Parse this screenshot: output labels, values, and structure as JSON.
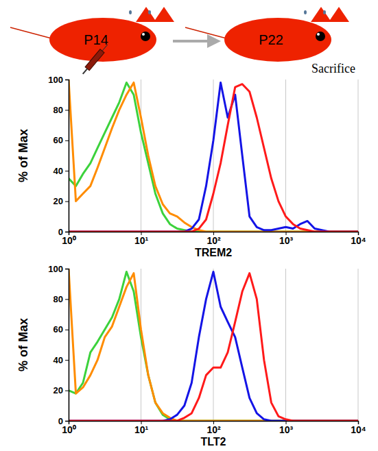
{
  "diagram": {
    "labels": [
      "P14",
      "P22"
    ]
  },
  "chart_data": [
    {
      "type": "line",
      "annotation": "Sacrifice",
      "x_label": "TREM2",
      "y_label": "% of Max",
      "x": [
        1,
        1.26,
        1.58,
        2,
        2.51,
        3.16,
        3.98,
        5.01,
        6.31,
        7.94,
        10,
        12.6,
        15.8,
        20,
        25.1,
        31.6,
        39.8,
        50.1,
        63.1,
        79.4,
        100,
        126,
        158,
        200,
        251,
        316,
        398,
        501,
        631,
        794,
        1000,
        1259,
        1585,
        1995,
        2512,
        3162,
        3981,
        5012,
        6310,
        7943,
        10000
      ],
      "series": [
        {
          "color": "#3cd23c",
          "values": [
            35,
            30,
            38,
            45,
            55,
            65,
            75,
            85,
            98,
            90,
            65,
            45,
            25,
            12,
            5,
            2,
            1,
            0,
            0,
            0,
            0,
            0,
            0,
            0,
            0,
            0,
            0,
            0,
            0,
            0,
            0,
            0,
            0,
            0,
            0,
            0,
            0,
            0,
            0,
            0,
            0
          ]
        },
        {
          "color": "#ff8c00",
          "values": [
            100,
            20,
            25,
            30,
            42,
            55,
            68,
            80,
            90,
            98,
            75,
            50,
            30,
            18,
            12,
            10,
            6,
            3,
            1,
            0,
            0,
            0,
            0,
            0,
            0,
            0,
            0,
            0,
            0,
            0,
            0,
            0,
            0,
            0,
            0,
            0,
            0,
            0,
            0,
            0,
            0
          ]
        },
        {
          "color": "#1414e6",
          "values": [
            0,
            0,
            0,
            0,
            0,
            0,
            0,
            0,
            0,
            0,
            0,
            0,
            0,
            0,
            0,
            0,
            0,
            2,
            8,
            30,
            60,
            98,
            75,
            90,
            50,
            10,
            3,
            1,
            1,
            2,
            3,
            2,
            5,
            7,
            2,
            1,
            0,
            0,
            0,
            0,
            0
          ]
        },
        {
          "color": "#ff1a1a",
          "values": [
            0,
            0,
            0,
            0,
            0,
            0,
            0,
            0,
            0,
            0,
            0,
            0,
            0,
            0,
            0,
            0,
            0,
            0,
            2,
            8,
            25,
            45,
            70,
            95,
            97,
            92,
            75,
            55,
            35,
            20,
            10,
            5,
            2,
            1,
            0,
            0,
            0,
            0,
            0,
            0,
            0
          ]
        }
      ],
      "xlim": [
        1,
        10000
      ],
      "xticks": [
        {
          "value": 1,
          "label": "10⁰"
        },
        {
          "value": 10,
          "label": "10¹"
        },
        {
          "value": 100,
          "label": "10²"
        },
        {
          "value": 1000,
          "label": "10³"
        },
        {
          "value": 10000,
          "label": "10⁴"
        }
      ],
      "ylim": [
        0,
        100
      ],
      "yticks": [
        0,
        20,
        40,
        60,
        80,
        100
      ],
      "log": "x",
      "grid": true
    },
    {
      "type": "line",
      "x_label": "TLT2",
      "y_label": "% of Max",
      "x": [
        1,
        1.26,
        1.58,
        2,
        2.51,
        3.16,
        3.98,
        5.01,
        6.31,
        7.94,
        10,
        12.6,
        15.8,
        20,
        25.1,
        31.6,
        39.8,
        50.1,
        63.1,
        79.4,
        100,
        126,
        158,
        200,
        251,
        316,
        398,
        501,
        631,
        794,
        1000,
        1259,
        1585,
        1995,
        2512,
        3162,
        3981,
        5012,
        6310,
        7943,
        10000
      ],
      "series": [
        {
          "color": "#3cd23c",
          "values": [
            20,
            18,
            25,
            45,
            52,
            60,
            68,
            80,
            98,
            85,
            55,
            30,
            12,
            4,
            1,
            0,
            0,
            0,
            0,
            0,
            0,
            0,
            0,
            0,
            0,
            0,
            0,
            0,
            0,
            0,
            0,
            0,
            0,
            0,
            0,
            0,
            0,
            0,
            0,
            0,
            0
          ]
        },
        {
          "color": "#ff8c00",
          "values": [
            100,
            18,
            22,
            30,
            40,
            55,
            62,
            75,
            88,
            97,
            60,
            30,
            12,
            5,
            2,
            0,
            0,
            0,
            0,
            0,
            0,
            0,
            0,
            0,
            0,
            0,
            0,
            0,
            0,
            0,
            0,
            0,
            0,
            0,
            0,
            0,
            0,
            0,
            0,
            0,
            0
          ]
        },
        {
          "color": "#1414e6",
          "values": [
            0,
            0,
            0,
            0,
            0,
            0,
            0,
            0,
            0,
            0,
            0,
            0,
            0,
            0,
            1,
            4,
            10,
            25,
            55,
            80,
            98,
            75,
            65,
            55,
            35,
            15,
            5,
            1,
            0,
            0,
            0,
            0,
            0,
            0,
            0,
            0,
            0,
            0,
            0,
            0,
            0
          ]
        },
        {
          "color": "#ff1a1a",
          "values": [
            0,
            0,
            0,
            0,
            0,
            0,
            0,
            0,
            0,
            0,
            0,
            0,
            0,
            0,
            0,
            0,
            2,
            5,
            15,
            30,
            35,
            35,
            45,
            65,
            85,
            97,
            80,
            40,
            12,
            3,
            1,
            0,
            0,
            0,
            0,
            0,
            0,
            0,
            0,
            0,
            0
          ]
        }
      ],
      "xlim": [
        1,
        10000
      ],
      "xticks": [
        {
          "value": 1,
          "label": "10⁰"
        },
        {
          "value": 10,
          "label": "10¹"
        },
        {
          "value": 100,
          "label": "10²"
        },
        {
          "value": 1000,
          "label": "10³"
        },
        {
          "value": 10000,
          "label": "10⁴"
        }
      ],
      "ylim": [
        0,
        100
      ],
      "yticks": [
        0,
        20,
        40,
        60,
        80,
        100
      ],
      "log": "x",
      "grid": true
    }
  ]
}
